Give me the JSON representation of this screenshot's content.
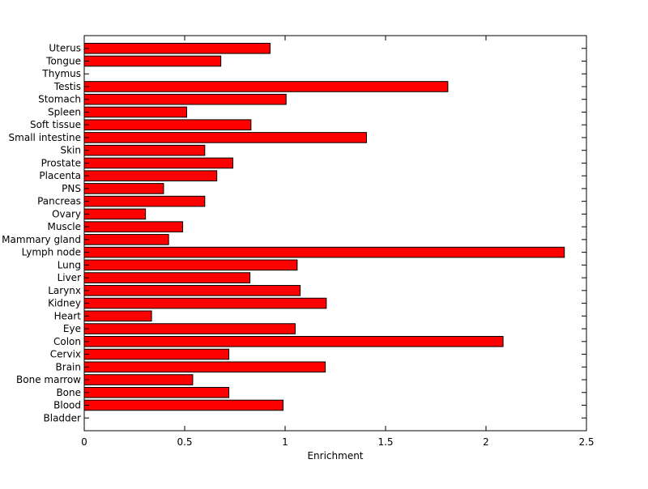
{
  "chart_data": {
    "type": "bar",
    "orientation": "horizontal",
    "title": "",
    "xlabel": "Enrichment",
    "ylabel": "",
    "xlim": [
      0,
      2.5
    ],
    "xticks": [
      "0",
      "0.5",
      "1",
      "1.5",
      "2",
      "2.5"
    ],
    "xtick_values": [
      0,
      0.5,
      1,
      1.5,
      2,
      2.5
    ],
    "categories": [
      "Bladder",
      "Blood",
      "Bone",
      "Bone marrow",
      "Brain",
      "Cervix",
      "Colon",
      "Eye",
      "Heart",
      "Kidney",
      "Larynx",
      "Liver",
      "Lung",
      "Lymph node",
      "Mammary gland",
      "Muscle",
      "Ovary",
      "Pancreas",
      "PNS",
      "Placenta",
      "Prostate",
      "Skin",
      "Small intestine",
      "Soft tissue",
      "Spleen",
      "Stomach",
      "Testis",
      "Thymus",
      "Tongue",
      "Uterus"
    ],
    "values": [
      0,
      0.99,
      0.72,
      0.54,
      1.2,
      0.72,
      2.085,
      1.05,
      0.335,
      1.205,
      1.075,
      0.825,
      1.06,
      2.39,
      0.42,
      0.49,
      0.305,
      0.6,
      0.395,
      0.66,
      0.74,
      0.6,
      1.405,
      0.83,
      0.51,
      1.005,
      1.81,
      0,
      0.68,
      0.925
    ],
    "bar_color": "#ff0000",
    "grid": false
  }
}
